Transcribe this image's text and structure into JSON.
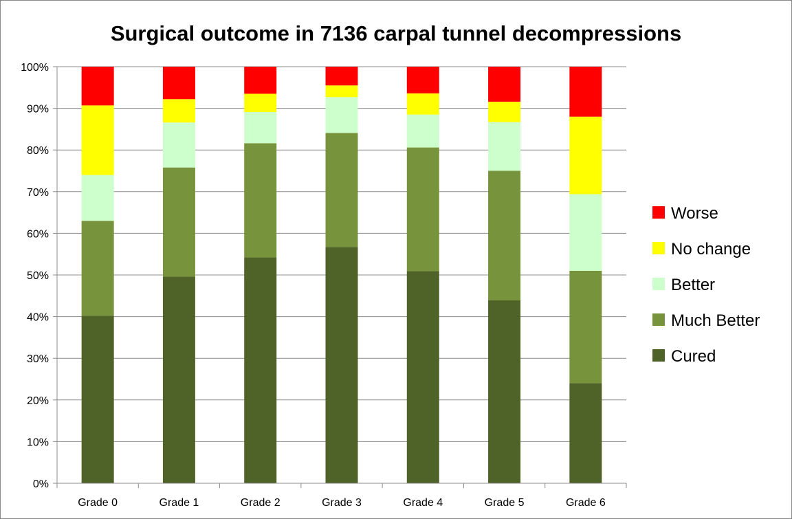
{
  "chart_data": {
    "type": "bar",
    "stacked": true,
    "percent_stacked": true,
    "title": "Surgical outcome in 7136 carpal tunnel decompressions",
    "xlabel": "",
    "ylabel": "",
    "categories": [
      "Grade 0",
      "Grade 1",
      "Grade 2",
      "Grade 3",
      "Grade 4",
      "Grade 5",
      "Grade 6"
    ],
    "ylim": [
      0,
      100
    ],
    "yticks": [
      "0%",
      "10%",
      "20%",
      "30%",
      "40%",
      "50%",
      "60%",
      "70%",
      "80%",
      "90%",
      "100%"
    ],
    "grid": true,
    "legend_position": "right",
    "legend_order": [
      "Worse",
      "No change",
      "Better",
      "Much Better",
      "Cured"
    ],
    "series": [
      {
        "name": "Cured",
        "color": "#4f6228",
        "values": [
          40.2,
          49.6,
          54.2,
          56.7,
          50.9,
          43.9,
          24.0
        ]
      },
      {
        "name": "Much Better",
        "color": "#77933c",
        "values": [
          22.8,
          26.2,
          27.4,
          27.4,
          29.7,
          31.1,
          27.0
        ]
      },
      {
        "name": "Better",
        "color": "#ccffcc",
        "values": [
          11.0,
          10.8,
          7.5,
          8.6,
          7.9,
          11.7,
          18.4
        ]
      },
      {
        "name": "No change",
        "color": "#ffff00",
        "values": [
          16.7,
          5.6,
          4.4,
          2.8,
          5.1,
          4.9,
          18.6
        ]
      },
      {
        "name": "Worse",
        "color": "#ff0000",
        "values": [
          9.3,
          7.8,
          6.5,
          4.5,
          6.4,
          8.4,
          12.0
        ]
      }
    ]
  }
}
